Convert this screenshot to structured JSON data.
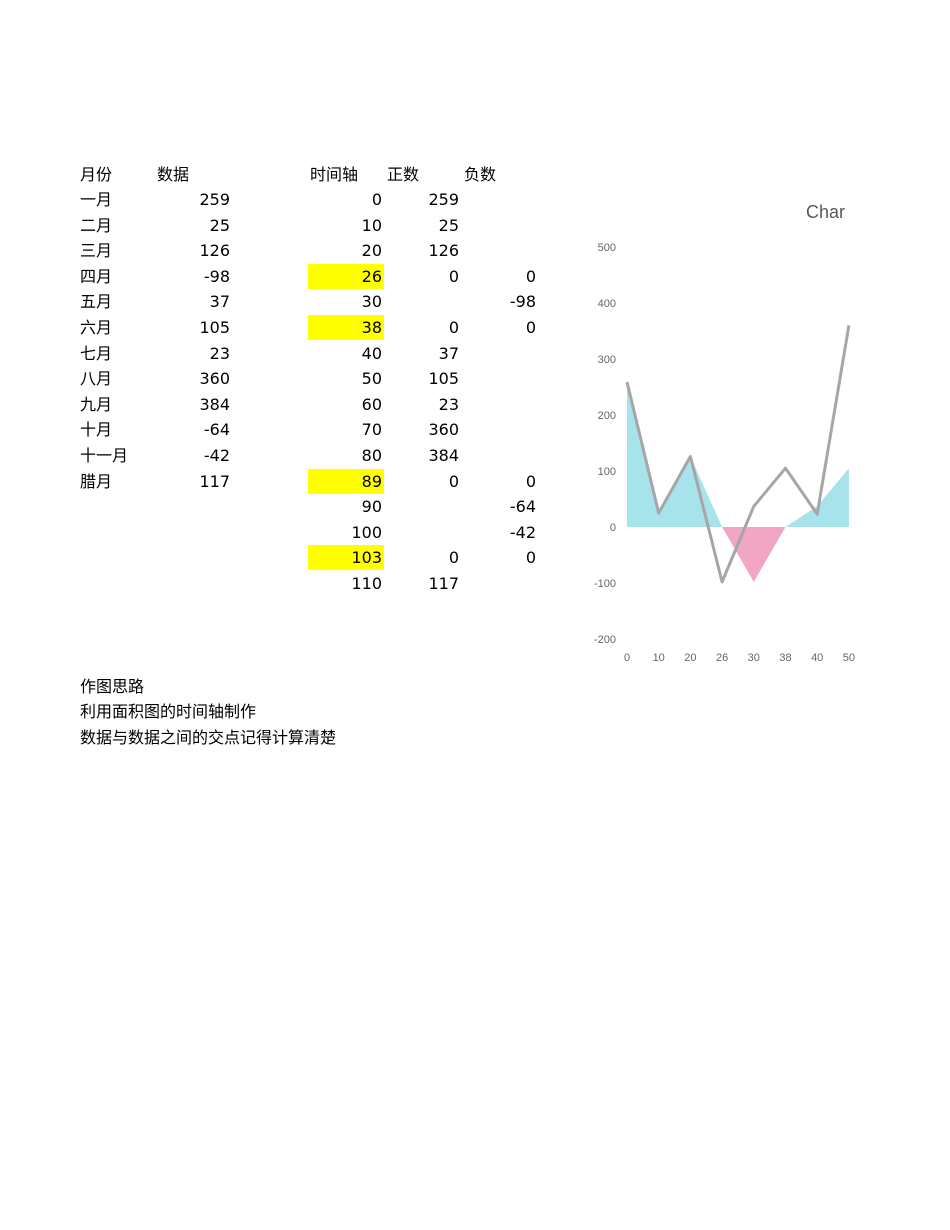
{
  "left_table": {
    "headers": [
      "月份",
      "数据"
    ],
    "rows": [
      [
        "一月",
        "259"
      ],
      [
        "二月",
        "25"
      ],
      [
        "三月",
        "126"
      ],
      [
        "四月",
        "-98"
      ],
      [
        "五月",
        "37"
      ],
      [
        "六月",
        "105"
      ],
      [
        "七月",
        "23"
      ],
      [
        "八月",
        "360"
      ],
      [
        "九月",
        "384"
      ],
      [
        "十月",
        "-64"
      ],
      [
        "十一月",
        "-42"
      ],
      [
        "腊月",
        "117"
      ]
    ]
  },
  "right_table": {
    "headers": [
      "时间轴",
      "正数",
      "负数"
    ],
    "rows": [
      [
        "0",
        "259",
        ""
      ],
      [
        "10",
        "25",
        ""
      ],
      [
        "20",
        "126",
        ""
      ],
      [
        "26",
        "0",
        "0"
      ],
      [
        "30",
        "",
        "-98"
      ],
      [
        "38",
        "0",
        "0"
      ],
      [
        "40",
        "37",
        ""
      ],
      [
        "50",
        "105",
        ""
      ],
      [
        "60",
        "23",
        ""
      ],
      [
        "70",
        "360",
        ""
      ],
      [
        "80",
        "384",
        ""
      ],
      [
        "89",
        "0",
        "0"
      ],
      [
        "90",
        "",
        "-64"
      ],
      [
        "100",
        "",
        "-42"
      ],
      [
        "103",
        "0",
        "0"
      ],
      [
        "110",
        "117",
        ""
      ]
    ],
    "highlighted_rows": [
      3,
      5,
      11,
      14
    ],
    "highlight_color": "#ffff00"
  },
  "notes": [
    "作图思路",
    "利用面积图的时间轴制作",
    "数据与数据之间的交点记得计算清楚"
  ],
  "chart_data": {
    "type": "area",
    "title_visible": "Char",
    "categories": [
      "0",
      "10",
      "20",
      "26",
      "30",
      "38",
      "40",
      "50"
    ],
    "series": [
      {
        "kind": "area",
        "color": "#a6e3ea",
        "values": [
          259,
          25,
          126,
          0,
          0,
          0,
          37,
          105
        ]
      },
      {
        "kind": "area",
        "color": "#f1a6c4",
        "values": [
          0,
          0,
          0,
          0,
          -98,
          0,
          0,
          0
        ]
      },
      {
        "kind": "line",
        "color": "#a6a6a6",
        "values": [
          259,
          25,
          126,
          -98,
          37,
          105,
          23,
          360
        ]
      }
    ],
    "ylim": [
      -200,
      500
    ],
    "yticks": [
      500,
      400,
      300,
      200,
      100,
      0,
      -100,
      -200
    ],
    "grid": false
  }
}
